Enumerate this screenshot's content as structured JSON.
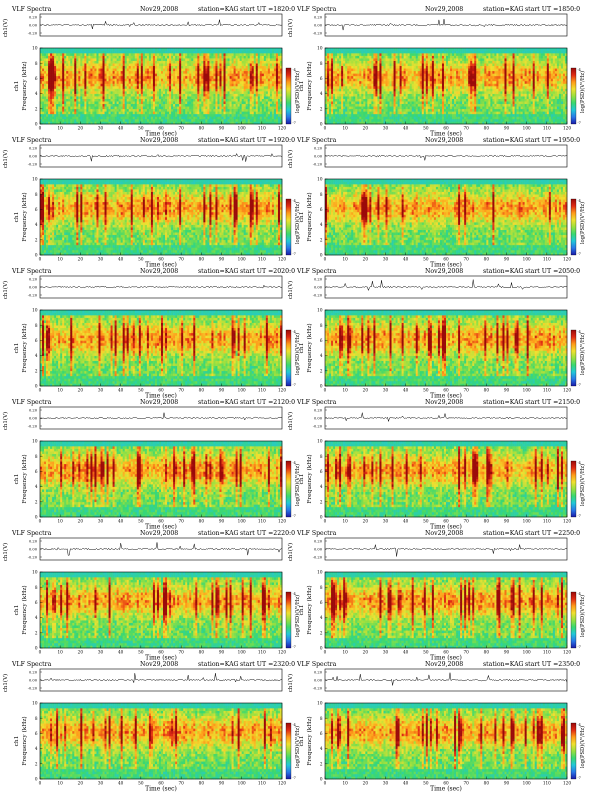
{
  "document": {
    "header_label": "VLF Spectra",
    "date": "Nov29,2008",
    "station_text": "station=KAG",
    "start_prefix": "start UT =",
    "time_axis_label": "Time (sec)",
    "top_axis_label": "ch1(V)",
    "freq_axis_label": "Frequency (kHz)",
    "side_axis_label": "ch1",
    "colorbar_label": "log(PSD)(V²/Hz)"
  },
  "colors": {
    "spectrogram_scale": [
      "#1a1aa8",
      "#2a78e8",
      "#22c8d8",
      "#3ad870",
      "#9ae040",
      "#f0e030",
      "#ff9a1a",
      "#e02a14",
      "#9a0a0a"
    ],
    "frame": "#000000",
    "waveform": "#000000"
  },
  "chart_data": [
    {
      "type": "heatmap",
      "panel": 1,
      "start_ut": "1820:0",
      "x": {
        "label": "Time (sec)",
        "range": [
          0,
          120
        ],
        "ticks": [
          0,
          10,
          20,
          30,
          40,
          50,
          60,
          70,
          80,
          90,
          100,
          110,
          120
        ]
      },
      "y": {
        "label": "Frequency (kHz)",
        "range": [
          0,
          10
        ],
        "ticks": [
          0,
          2,
          4,
          6,
          8,
          10
        ]
      },
      "top_strip": {
        "label": "ch1(V)",
        "ticks": [
          "0.20",
          "0.00",
          "-0.20"
        ]
      },
      "colorbar": {
        "label": "log(PSD)(V²/Hz)",
        "ticks": [
          "-4",
          "-7"
        ]
      }
    },
    {
      "type": "heatmap",
      "panel": 2,
      "start_ut": "1850:0",
      "x": {
        "label": "Time (sec)",
        "range": [
          0,
          120
        ],
        "ticks": [
          0,
          10,
          20,
          30,
          40,
          50,
          60,
          70,
          80,
          90,
          100,
          110,
          120
        ]
      },
      "y": {
        "label": "Frequency (kHz)",
        "range": [
          0,
          10
        ],
        "ticks": [
          0,
          2,
          4,
          6,
          8,
          10
        ]
      },
      "top_strip": {
        "label": "ch1(V)",
        "ticks": [
          "0.20",
          "0.00",
          "-0.20"
        ]
      },
      "colorbar": {
        "label": "log(PSD)(V²/Hz)",
        "ticks": [
          "-4",
          "-7"
        ]
      }
    },
    {
      "type": "heatmap",
      "panel": 3,
      "start_ut": "1920:0",
      "x": {
        "label": "Time (sec)",
        "range": [
          0,
          120
        ],
        "ticks": [
          0,
          10,
          20,
          30,
          40,
          50,
          60,
          70,
          80,
          90,
          100,
          110,
          120
        ]
      },
      "y": {
        "label": "Frequency (kHz)",
        "range": [
          0,
          10
        ],
        "ticks": [
          0,
          2,
          4,
          6,
          8,
          10
        ]
      },
      "top_strip": {
        "label": "ch1(V)",
        "ticks": [
          "0.20",
          "0.00",
          "-0.20"
        ]
      },
      "colorbar": {
        "label": "log(PSD)(V²/Hz)",
        "ticks": [
          "-4",
          "-7"
        ]
      }
    },
    {
      "type": "heatmap",
      "panel": 4,
      "start_ut": "1950:0",
      "x": {
        "label": "Time (sec)",
        "range": [
          0,
          120
        ],
        "ticks": [
          0,
          10,
          20,
          30,
          40,
          50,
          60,
          70,
          80,
          90,
          100,
          110,
          120
        ]
      },
      "y": {
        "label": "Frequency (kHz)",
        "range": [
          0,
          10
        ],
        "ticks": [
          0,
          2,
          4,
          6,
          8,
          10
        ]
      },
      "top_strip": {
        "label": "ch1(V)",
        "ticks": [
          "0.20",
          "0.00",
          "-0.20"
        ]
      },
      "colorbar": {
        "label": "log(PSD)(V²/Hz)",
        "ticks": [
          "-4",
          "-7"
        ]
      }
    },
    {
      "type": "heatmap",
      "panel": 5,
      "start_ut": "2020:0",
      "x": {
        "label": "Time (sec)",
        "range": [
          0,
          120
        ],
        "ticks": [
          0,
          10,
          20,
          30,
          40,
          50,
          60,
          70,
          80,
          90,
          100,
          110,
          120
        ]
      },
      "y": {
        "label": "Frequency (kHz)",
        "range": [
          0,
          10
        ],
        "ticks": [
          0,
          2,
          4,
          6,
          8,
          10
        ]
      },
      "top_strip": {
        "label": "ch1(V)",
        "ticks": [
          "0.20",
          "0.00",
          "-0.20"
        ]
      },
      "colorbar": {
        "label": "log(PSD)(V²/Hz)",
        "ticks": [
          "-4",
          "-7"
        ]
      }
    },
    {
      "type": "heatmap",
      "panel": 6,
      "start_ut": "2050:0",
      "x": {
        "label": "Time (sec)",
        "range": [
          0,
          120
        ],
        "ticks": [
          0,
          10,
          20,
          30,
          40,
          50,
          60,
          70,
          80,
          90,
          100,
          110,
          120
        ]
      },
      "y": {
        "label": "Frequency (kHz)",
        "range": [
          0,
          10
        ],
        "ticks": [
          0,
          2,
          4,
          6,
          8,
          10
        ]
      },
      "top_strip": {
        "label": "ch1(V)",
        "ticks": [
          "0.20",
          "0.00",
          "-0.20"
        ]
      },
      "colorbar": {
        "label": "log(PSD)(V²/Hz)",
        "ticks": [
          "-4",
          "-7"
        ]
      }
    },
    {
      "type": "heatmap",
      "panel": 7,
      "start_ut": "2120:0",
      "x": {
        "label": "Time (sec)",
        "range": [
          0,
          120
        ],
        "ticks": [
          0,
          10,
          20,
          30,
          40,
          50,
          60,
          70,
          80,
          90,
          100,
          110,
          120
        ]
      },
      "y": {
        "label": "Frequency (kHz)",
        "range": [
          0,
          10
        ],
        "ticks": [
          0,
          2,
          4,
          6,
          8,
          10
        ]
      },
      "top_strip": {
        "label": "ch1(V)",
        "ticks": [
          "0.20",
          "0.00",
          "-0.20"
        ]
      },
      "colorbar": {
        "label": "log(PSD)(V²/Hz)",
        "ticks": [
          "-4",
          "-7"
        ]
      }
    },
    {
      "type": "heatmap",
      "panel": 8,
      "start_ut": "2150:0",
      "x": {
        "label": "Time (sec)",
        "range": [
          0,
          120
        ],
        "ticks": [
          0,
          10,
          20,
          30,
          40,
          50,
          60,
          70,
          80,
          90,
          100,
          110,
          120
        ]
      },
      "y": {
        "label": "Frequency (kHz)",
        "range": [
          0,
          10
        ],
        "ticks": [
          0,
          2,
          4,
          6,
          8,
          10
        ]
      },
      "top_strip": {
        "label": "ch1(V)",
        "ticks": [
          "0.20",
          "0.00",
          "-0.20"
        ]
      },
      "colorbar": {
        "label": "log(PSD)(V²/Hz)",
        "ticks": [
          "-4",
          "-7"
        ]
      }
    },
    {
      "type": "heatmap",
      "panel": 9,
      "start_ut": "2220:0",
      "x": {
        "label": "Time (sec)",
        "range": [
          0,
          120
        ],
        "ticks": [
          0,
          10,
          20,
          30,
          40,
          50,
          60,
          70,
          80,
          90,
          100,
          110,
          120
        ]
      },
      "y": {
        "label": "Frequency (kHz)",
        "range": [
          0,
          10
        ],
        "ticks": [
          0,
          2,
          4,
          6,
          8,
          10
        ]
      },
      "top_strip": {
        "label": "ch1(V)",
        "ticks": [
          "0.20",
          "0.00",
          "-0.20"
        ]
      },
      "colorbar": {
        "label": "log(PSD)(V²/Hz)",
        "ticks": [
          "-4",
          "-7"
        ]
      }
    },
    {
      "type": "heatmap",
      "panel": 10,
      "start_ut": "2250:0",
      "x": {
        "label": "Time (sec)",
        "range": [
          0,
          120
        ],
        "ticks": [
          0,
          10,
          20,
          30,
          40,
          50,
          60,
          70,
          80,
          90,
          100,
          110,
          120
        ]
      },
      "y": {
        "label": "Frequency (kHz)",
        "range": [
          0,
          10
        ],
        "ticks": [
          0,
          2,
          4,
          6,
          8,
          10
        ]
      },
      "top_strip": {
        "label": "ch1(V)",
        "ticks": [
          "0.20",
          "0.00",
          "-0.20"
        ]
      },
      "colorbar": {
        "label": "log(PSD)(V²/Hz)",
        "ticks": [
          "-4",
          "-7"
        ]
      }
    },
    {
      "type": "heatmap",
      "panel": 11,
      "start_ut": "2320:0",
      "x": {
        "label": "Time (sec)",
        "range": [
          0,
          120
        ],
        "ticks": [
          0,
          10,
          20,
          30,
          40,
          50,
          60,
          70,
          80,
          90,
          100,
          110,
          120
        ]
      },
      "y": {
        "label": "Frequency (kHz)",
        "range": [
          0,
          10
        ],
        "ticks": [
          0,
          2,
          4,
          6,
          8,
          10
        ]
      },
      "top_strip": {
        "label": "ch1(V)",
        "ticks": [
          "0.20",
          "0.00",
          "-0.20"
        ]
      },
      "colorbar": {
        "label": "log(PSD)(V²/Hz)",
        "ticks": [
          "-4",
          "-7"
        ]
      }
    },
    {
      "type": "heatmap",
      "panel": 12,
      "start_ut": "2350:0",
      "x": {
        "label": "Time (sec)",
        "range": [
          0,
          120
        ],
        "ticks": [
          0,
          10,
          20,
          30,
          40,
          50,
          60,
          70,
          80,
          90,
          100,
          110,
          120
        ]
      },
      "y": {
        "label": "Frequency (kHz)",
        "range": [
          0,
          10
        ],
        "ticks": [
          0,
          2,
          4,
          6,
          8,
          10
        ]
      },
      "top_strip": {
        "label": "ch1(V)",
        "ticks": [
          "0.20",
          "0.00",
          "-0.20"
        ]
      },
      "colorbar": {
        "label": "log(PSD)(V²/Hz)",
        "ticks": [
          "-4",
          "-7"
        ]
      }
    }
  ]
}
